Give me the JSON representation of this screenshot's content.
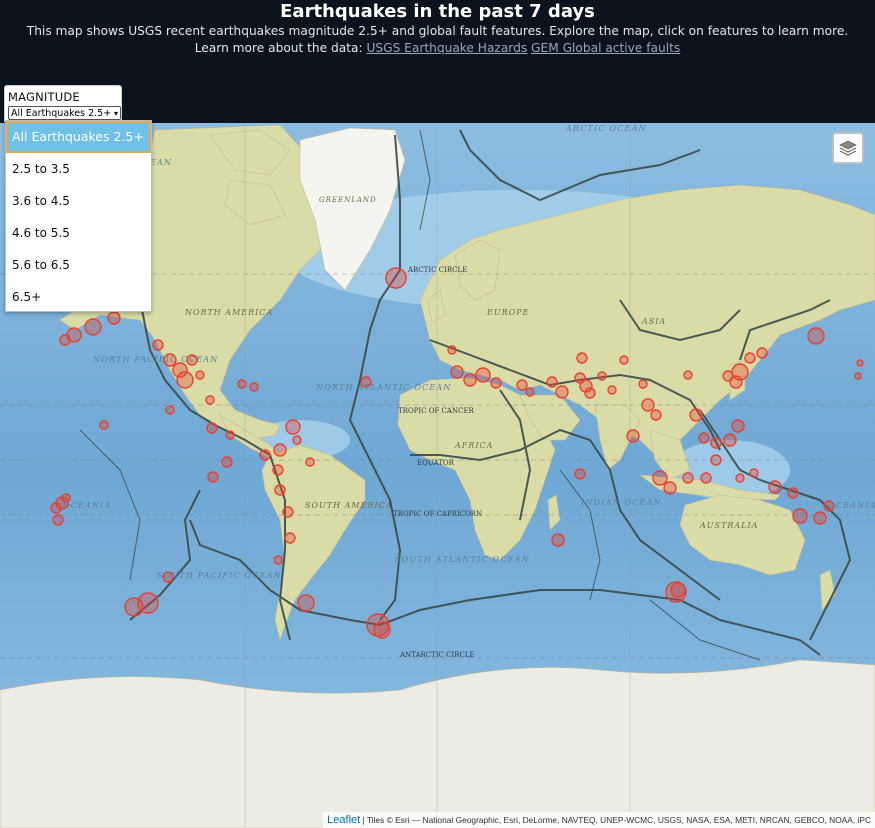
{
  "header": {
    "title": "Earthquakes in the past 7 days",
    "description": "This map shows USGS recent earthquakes magnitude 2.5+ and global fault features. Explore the map, click on features to learn more.",
    "learn_more_prefix": "Learn more about the data:",
    "links": [
      "USGS Earthquake Hazards",
      "GEM Global active faults"
    ]
  },
  "magnitude_control": {
    "label": "MAGNITUDE",
    "selected": "All Earthquakes 2.5+",
    "options": [
      "All Earthquakes 2.5+",
      "2.5 to 3.5",
      "3.6 to 4.5",
      "4.6 to 5.5",
      "5.6 to 6.5",
      "6.5+"
    ]
  },
  "map_labels": {
    "arctic_ocean": "ARCTIC OCEAN",
    "greenland": "GREENLAND",
    "arctic_circle": "ARCTIC CIRCLE",
    "north_america": "NORTH AMERICA",
    "north_pacific_ocean": "NORTH PACIFIC OCEAN",
    "north_atlantic_ocean": "NORTH ATLANTIC OCEAN",
    "europe": "EUROPE",
    "asia": "ASIA",
    "africa": "AFRICA",
    "tropic_of_cancer": "TROPIC OF CANCER",
    "equator": "EQUATOR",
    "south_america": "SOUTH AMERICA",
    "tropic_of_capricorn": "TROPIC OF CAPRICORN",
    "indian_ocean": "INDIAN OCEAN",
    "australia": "AUSTRALIA",
    "oceania_left": "OCEANIA",
    "oceania_right": "OCEANIA",
    "south_pacific_ocean": "SOUTH PACIFIC OCEAN",
    "south_atlantic_ocean": "SOUTH ATLANTIC OCEAN",
    "antarctic_circle": "ANTARCTIC CIRCLE",
    "ean_fragment": "EAN"
  },
  "attribution": {
    "leaflet": "Leaflet",
    "text": "Tiles © Esri — National Geographic, Esri, DeLorme, NAVTEQ, UNEP-WCMC, USGS, NASA, ESA, METI, NRCAN, GEBCO, NOAA, iPC"
  },
  "icons": {
    "layers": "layers-icon"
  },
  "colors": {
    "header_bg": "#0b131e",
    "quake": "#e8402f",
    "fault": "#3a4a48",
    "ocean": "#7db1d8",
    "land": "#d9dca6"
  }
}
